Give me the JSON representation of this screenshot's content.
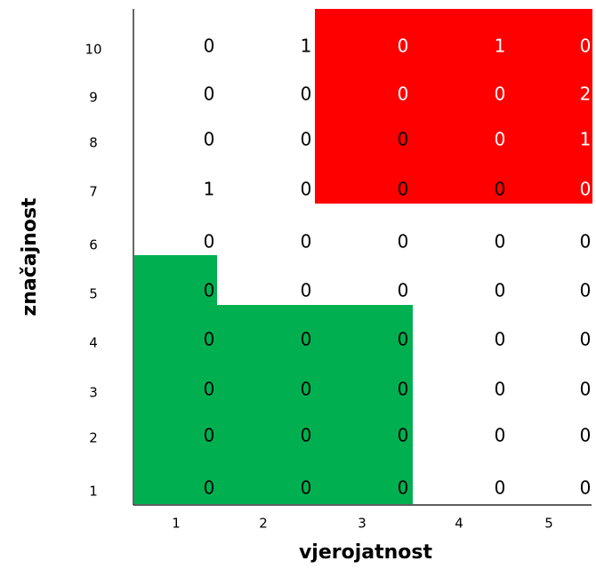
{
  "chart_data": {
    "type": "heatmap",
    "xlabel": "vjerojatnost",
    "ylabel": "značajnost",
    "x_ticks": [
      "1",
      "2",
      "3",
      "4",
      "5"
    ],
    "y_ticks": [
      "10",
      "9",
      "8",
      "7",
      "6",
      "5",
      "4",
      "3",
      "2",
      "1"
    ],
    "rows": [
      [
        "0",
        "1",
        "0",
        "1",
        "0"
      ],
      [
        "0",
        "0",
        "0",
        "0",
        "2"
      ],
      [
        "0",
        "0",
        "0",
        "0",
        "1"
      ],
      [
        "1",
        "0",
        "0",
        "0",
        "0"
      ],
      [
        "0",
        "0",
        "0",
        "0",
        "0"
      ],
      [
        "0",
        "0",
        "0",
        "0",
        "0"
      ],
      [
        "0",
        "0",
        "0",
        "0",
        "0"
      ],
      [
        "0",
        "0",
        "0",
        "0",
        "0"
      ],
      [
        "0",
        "0",
        "0",
        "0",
        "0"
      ],
      [
        "0",
        "0",
        "0",
        "0",
        "0"
      ]
    ],
    "zones": [
      {
        "name": "high-risk",
        "color": "#ff0000",
        "cells": "x 3-5, significance 7-10",
        "text_color": "#ffffff"
      },
      {
        "name": "low-risk",
        "color": "#00b050",
        "cells": "x 1, significance 1-5; x 2-3, significance 1-4",
        "text_color": "#000000"
      }
    ],
    "grid": false
  }
}
